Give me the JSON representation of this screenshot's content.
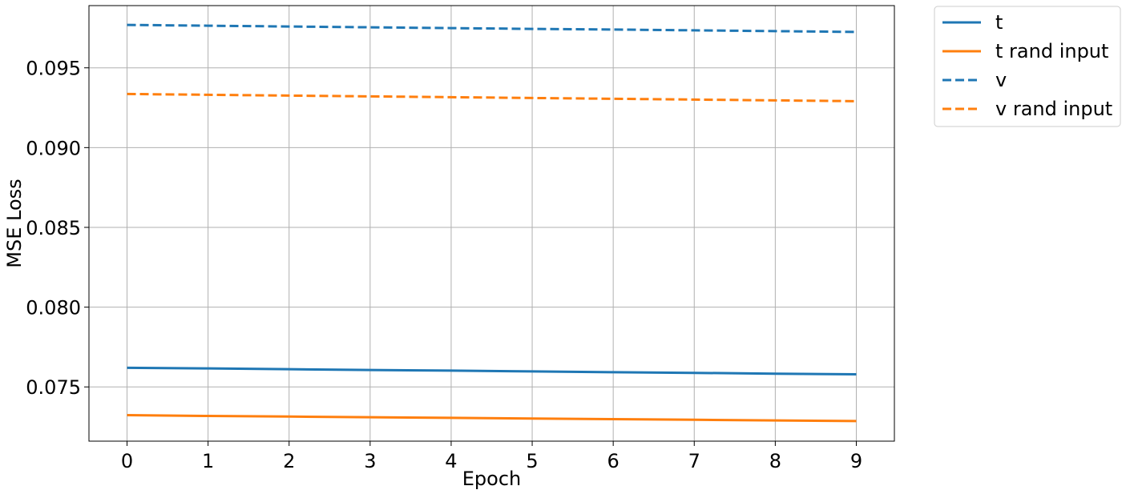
{
  "chart_data": {
    "type": "line",
    "title": "",
    "xlabel": "Epoch",
    "ylabel": "MSE Loss",
    "x": [
      0,
      1,
      2,
      3,
      4,
      5,
      6,
      7,
      8,
      9
    ],
    "xlim": [
      -0.47,
      9.47
    ],
    "ylim": [
      0.0716,
      0.0989
    ],
    "xticks": [
      0,
      1,
      2,
      3,
      4,
      5,
      6,
      7,
      8,
      9
    ],
    "yticks": [
      0.075,
      0.08,
      0.085,
      0.09,
      0.095
    ],
    "xtick_labels": [
      "0",
      "1",
      "2",
      "3",
      "4",
      "5",
      "6",
      "7",
      "8",
      "9"
    ],
    "ytick_labels": [
      "0.075",
      "0.080",
      "0.085",
      "0.090",
      "0.095"
    ],
    "grid": true,
    "legend_position": "outside-top-right",
    "series": [
      {
        "name": "t",
        "color": "#1f77b4",
        "style": "solid",
        "values": [
          0.0762,
          0.07616,
          0.07611,
          0.07606,
          0.07602,
          0.07597,
          0.07592,
          0.07588,
          0.07583,
          0.07579
        ]
      },
      {
        "name": "t rand input",
        "color": "#ff7f0e",
        "style": "solid",
        "values": [
          0.07323,
          0.07318,
          0.07314,
          0.0731,
          0.07306,
          0.07302,
          0.07298,
          0.07294,
          0.0729,
          0.07286
        ]
      },
      {
        "name": "v",
        "color": "#1f77b4",
        "style": "dashed",
        "values": [
          0.09769,
          0.09764,
          0.09759,
          0.09754,
          0.09749,
          0.09744,
          0.0974,
          0.09735,
          0.0973,
          0.09725
        ]
      },
      {
        "name": "v rand input",
        "color": "#ff7f0e",
        "style": "dashed",
        "values": [
          0.09336,
          0.09331,
          0.09326,
          0.09321,
          0.09316,
          0.09311,
          0.09306,
          0.09301,
          0.09296,
          0.09291
        ]
      }
    ]
  }
}
